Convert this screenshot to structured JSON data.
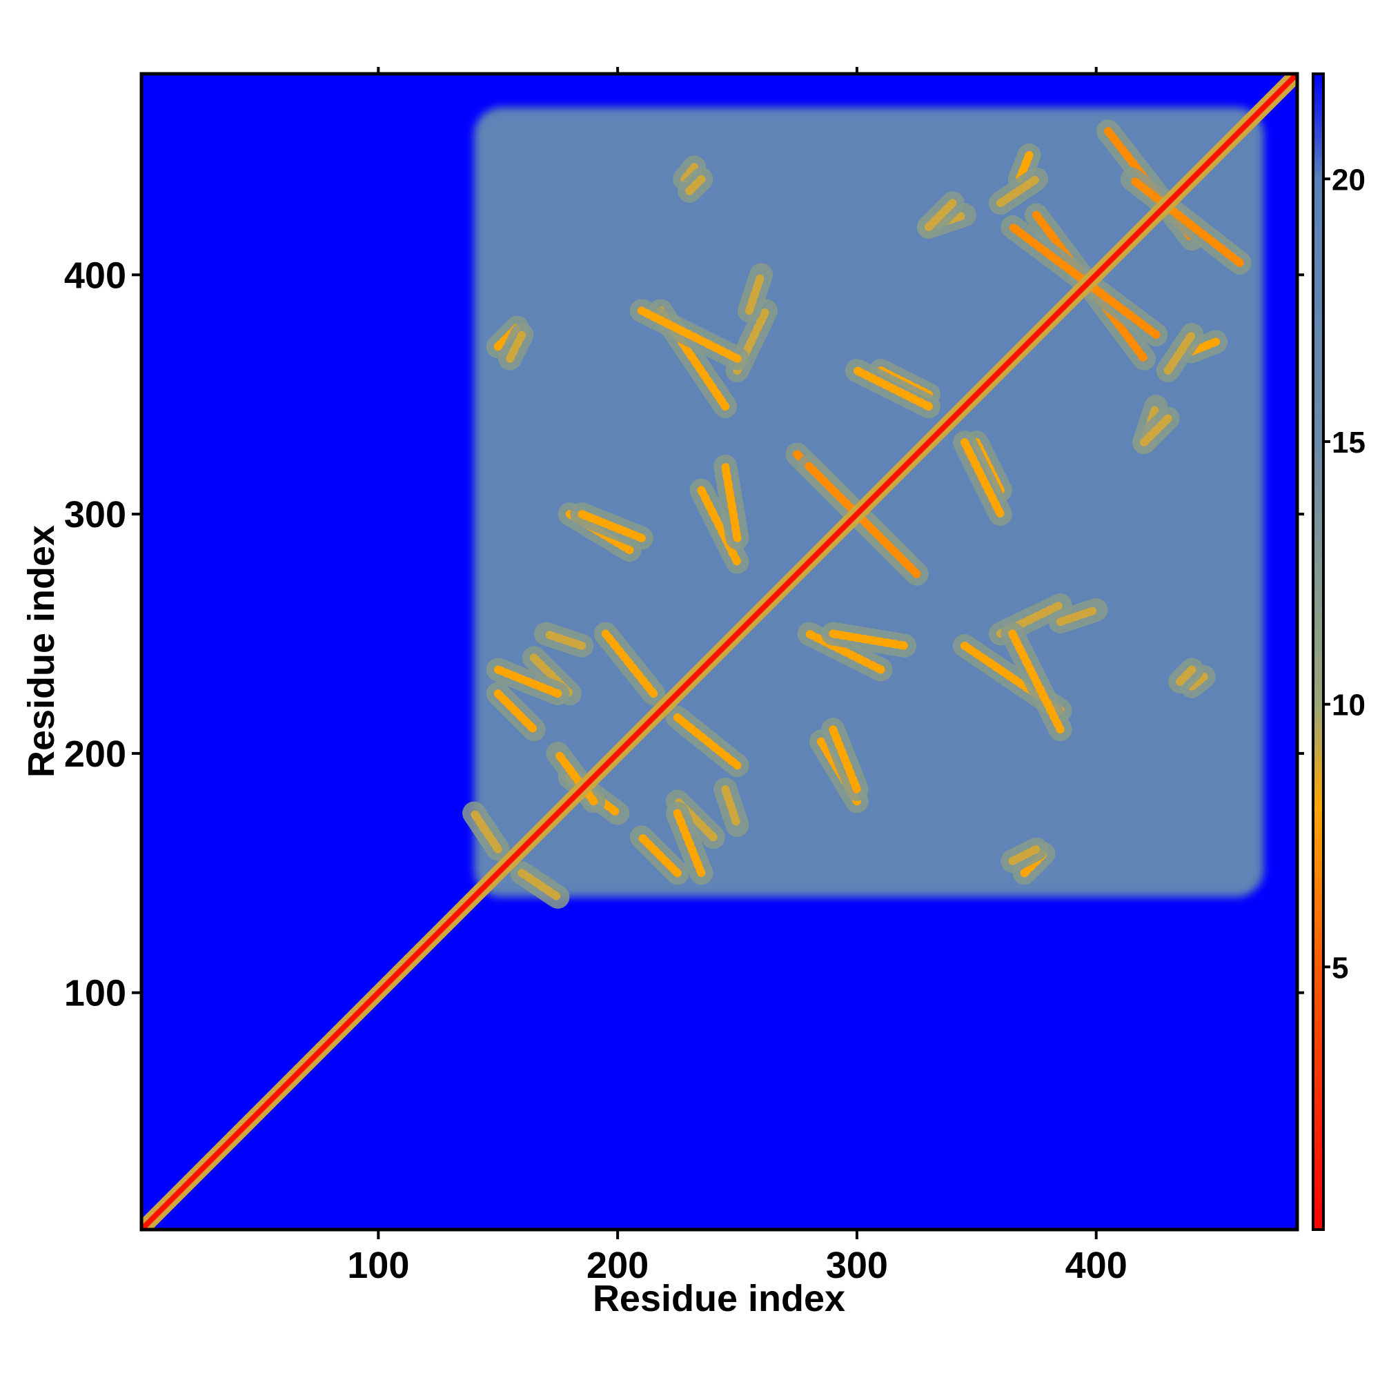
{
  "chart_data": {
    "type": "heatmap",
    "title": "",
    "xlabel": "Residue index",
    "ylabel": "Residue index",
    "xlim": [
      1,
      484
    ],
    "ylim": [
      1,
      484
    ],
    "x_ticks": [
      100,
      200,
      300,
      400
    ],
    "x_tick_labels": [
      "100",
      "200",
      "300",
      "400"
    ],
    "y_ticks": [
      100,
      200,
      300,
      400
    ],
    "y_tick_labels": [
      "100",
      "200",
      "300",
      "400"
    ],
    "colorbar": {
      "range": [
        0,
        22
      ],
      "ticks": [
        5,
        10,
        15,
        20
      ],
      "tick_labels": [
        "5",
        "10",
        "15",
        "20"
      ],
      "colors": [
        {
          "value": 0,
          "color": "#ff0000"
        },
        {
          "value": 5,
          "color": "#ff5a00"
        },
        {
          "value": 8,
          "color": "#ffa500"
        },
        {
          "value": 10,
          "color": "#9aa77a"
        },
        {
          "value": 15,
          "color": "#6c8aa9"
        },
        {
          "value": 20,
          "color": "#5a82b8"
        },
        {
          "value": 22,
          "color": "#0000ff"
        }
      ]
    },
    "cell_value_description": "Pairwise residue distance; background (far) = 22, folded domain region = 19, contacts lower",
    "grid": false,
    "legend": "colorbar-right",
    "domain_region": {
      "x": [
        140,
        470
      ],
      "y": [
        140,
        470
      ]
    },
    "background_value": 22,
    "domain_value": 19,
    "diagonal_value": 1,
    "contact_features": [
      {
        "from": [
          150,
          370
        ],
        "to": [
          158,
          378
        ],
        "min_value": 6
      },
      {
        "from": [
          228,
          440
        ],
        "to": [
          232,
          445
        ],
        "min_value": 7
      },
      {
        "from": [
          218,
          385
        ],
        "to": [
          245,
          345
        ],
        "min_value": 6
      },
      {
        "from": [
          250,
          360
        ],
        "to": [
          262,
          385
        ],
        "min_value": 7
      },
      {
        "from": [
          180,
          300
        ],
        "to": [
          205,
          285
        ],
        "min_value": 6
      },
      {
        "from": [
          235,
          310
        ],
        "to": [
          250,
          280
        ],
        "min_value": 6
      },
      {
        "from": [
          275,
          325
        ],
        "to": [
          320,
          280
        ],
        "min_value": 5
      },
      {
        "from": [
          290,
          250
        ],
        "to": [
          320,
          245
        ],
        "min_value": 6
      },
      {
        "from": [
          310,
          360
        ],
        "to": [
          330,
          350
        ],
        "min_value": 6
      },
      {
        "from": [
          330,
          420
        ],
        "to": [
          345,
          425
        ],
        "min_value": 7
      },
      {
        "from": [
          345,
          330
        ],
        "to": [
          360,
          300
        ],
        "min_value": 6
      },
      {
        "from": [
          368,
          440
        ],
        "to": [
          372,
          450
        ],
        "min_value": 6
      },
      {
        "from": [
          375,
          425
        ],
        "to": [
          420,
          365
        ],
        "min_value": 5
      },
      {
        "from": [
          405,
          460
        ],
        "to": [
          440,
          415
        ],
        "min_value": 5
      },
      {
        "from": [
          430,
          360
        ],
        "to": [
          440,
          375
        ],
        "min_value": 7
      },
      {
        "from": [
          420,
          330
        ],
        "to": [
          430,
          340
        ],
        "min_value": 7
      },
      {
        "from": [
          365,
          250
        ],
        "to": [
          385,
          210
        ],
        "min_value": 6
      },
      {
        "from": [
          385,
          255
        ],
        "to": [
          400,
          260
        ],
        "min_value": 7
      },
      {
        "from": [
          435,
          230
        ],
        "to": [
          440,
          235
        ],
        "min_value": 7
      },
      {
        "from": [
          290,
          210
        ],
        "to": [
          300,
          185
        ],
        "min_value": 6
      },
      {
        "from": [
          225,
          215
        ],
        "to": [
          250,
          195
        ],
        "min_value": 6
      },
      {
        "from": [
          150,
          225
        ],
        "to": [
          165,
          210
        ],
        "min_value": 6
      },
      {
        "from": [
          165,
          240
        ],
        "to": [
          180,
          225
        ],
        "min_value": 7
      },
      {
        "from": [
          225,
          175
        ],
        "to": [
          235,
          150
        ],
        "min_value": 6
      },
      {
        "from": [
          245,
          185
        ],
        "to": [
          250,
          170
        ],
        "min_value": 7
      },
      {
        "from": [
          160,
          150
        ],
        "to": [
          175,
          140
        ],
        "min_value": 7
      },
      {
        "from": [
          365,
          155
        ],
        "to": [
          375,
          160
        ],
        "min_value": 7
      },
      {
        "from": [
          180,
          190
        ],
        "to": [
          200,
          175
        ],
        "min_value": 6
      }
    ]
  }
}
